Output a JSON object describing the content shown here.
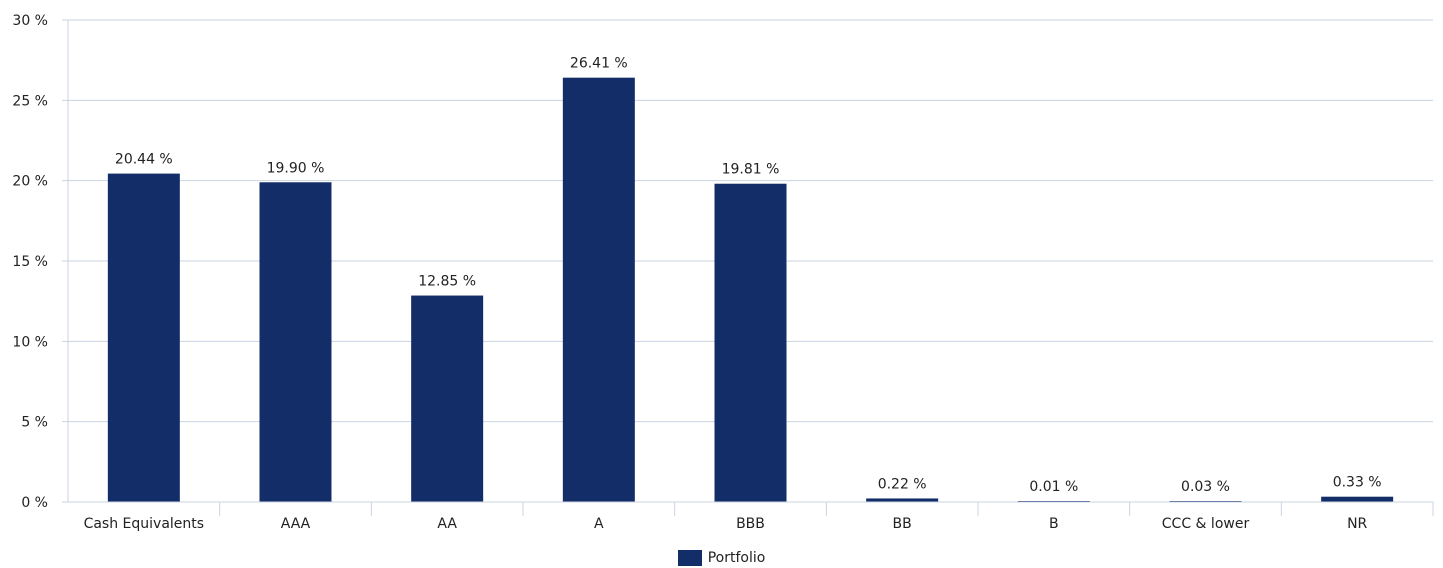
{
  "chart_data": {
    "type": "bar",
    "categories": [
      "Cash Equivalents",
      "AAA",
      "AA",
      "A",
      "BBB",
      "BB",
      "B",
      "CCC & lower",
      "NR"
    ],
    "series": [
      {
        "name": "Portfolio",
        "values": [
          20.44,
          19.9,
          12.85,
          26.41,
          19.81,
          0.22,
          0.01,
          0.03,
          0.33
        ],
        "labels": [
          "20.44 %",
          "19.90 %",
          "12.85 %",
          "26.41 %",
          "19.81 %",
          "0.22 %",
          "0.01 %",
          "0.03 %",
          "0.33 %"
        ],
        "color": "#132d69"
      }
    ],
    "yticks": [
      "0 %",
      "5 %",
      "10 %",
      "15 %",
      "20 %",
      "25 %",
      "30 %"
    ],
    "ylim": [
      0,
      30
    ],
    "ystep": 5,
    "grid": true,
    "legend_position": "bottom-center",
    "title": "",
    "xlabel": "",
    "ylabel": ""
  },
  "colors": {
    "bar": "#132d69",
    "grid": "#c9d4e0",
    "axis": "#c9d4e0"
  }
}
